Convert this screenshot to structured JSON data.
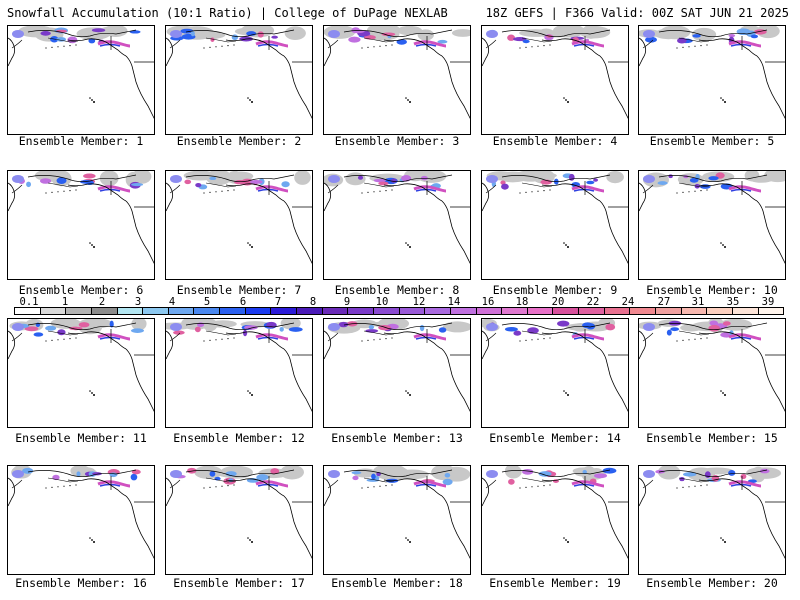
{
  "header": {
    "title_left": "Snowfall Accumulation (10:1 Ratio) | College of DuPage NEXLAB",
    "title_right": "18Z GEFS | F366 Valid: 00Z SAT JUN 21 2025"
  },
  "members": [
    {
      "label": "Ensemble Member: 1"
    },
    {
      "label": "Ensemble Member: 2"
    },
    {
      "label": "Ensemble Member: 3"
    },
    {
      "label": "Ensemble Member: 4"
    },
    {
      "label": "Ensemble Member: 5"
    },
    {
      "label": "Ensemble Member: 6"
    },
    {
      "label": "Ensemble Member: 7"
    },
    {
      "label": "Ensemble Member: 8"
    },
    {
      "label": "Ensemble Member: 9"
    },
    {
      "label": "Ensemble Member: 10"
    },
    {
      "label": "Ensemble Member: 11"
    },
    {
      "label": "Ensemble Member: 12"
    },
    {
      "label": "Ensemble Member: 13"
    },
    {
      "label": "Ensemble Member: 14"
    },
    {
      "label": "Ensemble Member: 15"
    },
    {
      "label": "Ensemble Member: 16"
    },
    {
      "label": "Ensemble Member: 17"
    },
    {
      "label": "Ensemble Member: 18"
    },
    {
      "label": "Ensemble Member: 19"
    },
    {
      "label": "Ensemble Member: 20"
    }
  ],
  "colorbar": {
    "ticks": [
      "0.1",
      "1",
      "2",
      "3",
      "4",
      "5",
      "6",
      "7",
      "8",
      "9",
      "10",
      "12",
      "14",
      "16",
      "18",
      "20",
      "22",
      "24",
      "27",
      "31",
      "35",
      "39"
    ],
    "colors": [
      "#ffffff",
      "#d9d9d9",
      "#b3b3b3",
      "#8c8c8c",
      "#b3e6f2",
      "#8cc8f0",
      "#6ea8f0",
      "#4a88f0",
      "#2a60f0",
      "#1a3af0",
      "#2a1ad8",
      "#4a1ab8",
      "#6a2ab8",
      "#7a3ac8",
      "#8a4ad0",
      "#9a5ad8",
      "#aa6ae0",
      "#c070e0",
      "#d070d8",
      "#e078d0",
      "#e870c8",
      "#d8509c",
      "#e060a0",
      "#e87090",
      "#f08890",
      "#f0a0a0",
      "#f8b8b0",
      "#fcd0c0",
      "#fde4d8",
      "#fff4ec"
    ]
  }
}
